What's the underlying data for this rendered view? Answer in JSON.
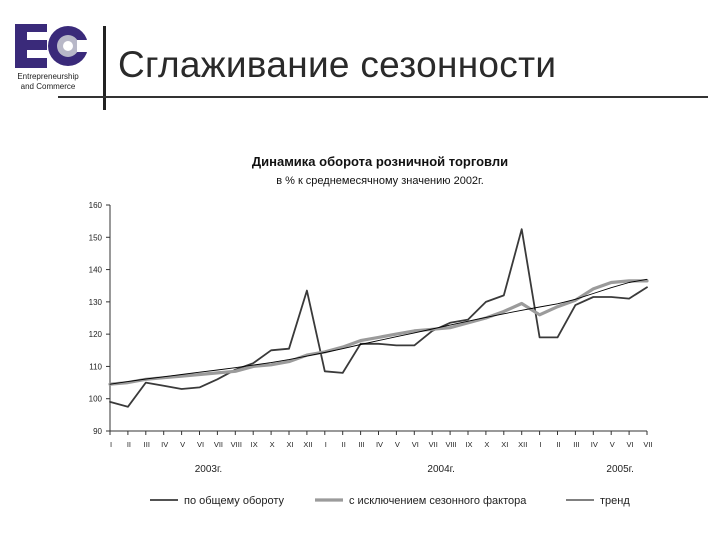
{
  "header": {
    "logo_text": "EC",
    "logo_caption_1": "Entrepreneurship",
    "logo_caption_2": "and Commerce",
    "slide_title": "Сглаживание сезонности"
  },
  "colors": {
    "turnover": "#3a3a3a",
    "seasonal_adjusted": "#9b9b9b",
    "trend": "#000000",
    "logo_purple": "#3a2a7a",
    "logo_gray": "#b8b8c8"
  },
  "chart_data": {
    "type": "line",
    "title": "Динамика оборота розничной торговли",
    "subtitle": "в % к среднемесячному значению 2002г.",
    "xlabel": "",
    "ylabel": "",
    "ylim": [
      90,
      160
    ],
    "yticks": [
      90,
      100,
      110,
      120,
      130,
      140,
      150,
      160
    ],
    "grid": false,
    "legend_position": "bottom",
    "categories": [
      "I",
      "II",
      "III",
      "IV",
      "V",
      "VI",
      "VII",
      "VIII",
      "IX",
      "X",
      "XI",
      "XII",
      "I",
      "II",
      "III",
      "IV",
      "V",
      "VI",
      "VII",
      "VIII",
      "IX",
      "X",
      "XI",
      "XII",
      "I",
      "II",
      "III",
      "IV",
      "V",
      "VI",
      "VII"
    ],
    "year_labels": [
      {
        "label": "2003г.",
        "at_index": 5.5
      },
      {
        "label": "2004г.",
        "at_index": 18.5
      },
      {
        "label": "2005г.",
        "at_index": 28.5
      }
    ],
    "series": [
      {
        "name": "по общему обороту",
        "style": "dark",
        "values": [
          99,
          97.5,
          105,
          104,
          103,
          103.5,
          106,
          109,
          111,
          115,
          115.5,
          133.5,
          108.5,
          108,
          117,
          117,
          116.5,
          116.5,
          121,
          123.5,
          124.5,
          130,
          132,
          152.5,
          119,
          119,
          129,
          131.5,
          131.5,
          131,
          134.5
        ]
      },
      {
        "name": "с исключением сезонного фактора",
        "style": "gray",
        "values": [
          104.5,
          105,
          106,
          106.5,
          107,
          107.5,
          108,
          108.5,
          110,
          110.5,
          111.5,
          113.5,
          114.5,
          116,
          118,
          119,
          120,
          121,
          121.5,
          122,
          123.5,
          125,
          127,
          129.5,
          126,
          128.5,
          130.5,
          134,
          136,
          136.5,
          136.5
        ]
      },
      {
        "name": "тренд",
        "style": "trend",
        "values": [
          104.5,
          105.3,
          106.1,
          106.8,
          107.5,
          108.2,
          108.9,
          109.6,
          110.4,
          111.2,
          112.1,
          113.2,
          114.3,
          115.5,
          116.8,
          118,
          119.2,
          120.4,
          121.6,
          122.8,
          124,
          125.2,
          126.3,
          127.4,
          128.4,
          129.4,
          130.8,
          132.6,
          134.4,
          136,
          137
        ]
      }
    ]
  }
}
